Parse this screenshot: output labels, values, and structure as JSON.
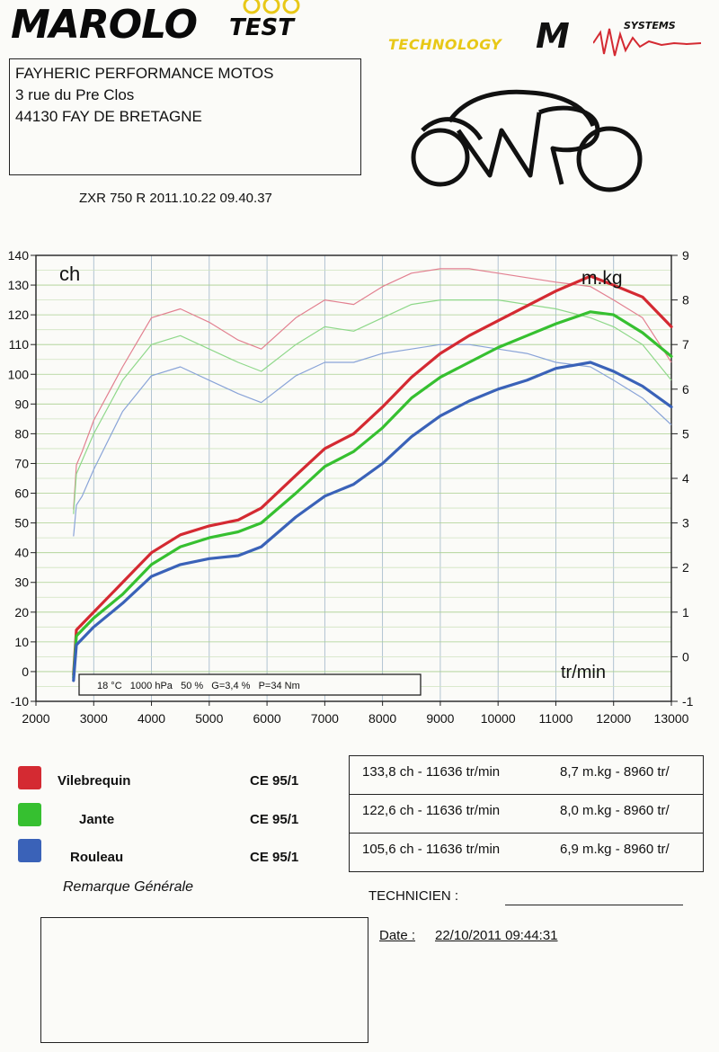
{
  "header": {
    "brand_main": "MAROLO",
    "brand_test": "TEST",
    "tech_text": "TECHNOLOGY",
    "systems_main": "M",
    "systems_sub": "SYSTEMS"
  },
  "address": {
    "line1": "FAYHERIC PERFORMANCE MOTOS",
    "line2": "3 rue du Pre Clos",
    "line3": "44130 FAY DE BRETAGNE"
  },
  "model_line": "ZXR 750 R   2011.10.22 09.40.37",
  "chart_data": {
    "type": "line",
    "x_label": "tr/min",
    "y_label_left": "ch",
    "y_label_right": "m.kg",
    "xlim": [
      2000,
      13000
    ],
    "ylim_left": [
      -10,
      140
    ],
    "ylim_right": [
      -1,
      9
    ],
    "x_ticks": [
      2000,
      3000,
      4000,
      5000,
      6000,
      7000,
      8000,
      9000,
      10000,
      11000,
      12000,
      13000
    ],
    "y_ticks_left": [
      -10,
      0,
      10,
      20,
      30,
      40,
      50,
      60,
      70,
      80,
      90,
      100,
      110,
      120,
      130,
      140
    ],
    "y_ticks_right": [
      -1,
      0,
      1,
      2,
      3,
      4,
      5,
      6,
      7,
      8,
      9
    ],
    "grid": true,
    "conditions": "18 °C   1000 hPa   50 %   G=3,4 %   P=34 Nm",
    "colors": {
      "power": [
        "#d42a32",
        "#36c030",
        "#3a62b8"
      ],
      "torque": [
        "#e28090",
        "#8fd88a",
        "#8aa4d8"
      ]
    },
    "rpm": [
      2650,
      2700,
      2800,
      3000,
      3500,
      4000,
      4500,
      5000,
      5500,
      5900,
      6500,
      7000,
      7500,
      8000,
      8500,
      9000,
      9500,
      10000,
      10500,
      11000,
      11600,
      12000,
      12500,
      13000
    ],
    "power_series": [
      {
        "name": "Vilebrequin",
        "values": [
          -1,
          14,
          16,
          20,
          30,
          40,
          46,
          49,
          51,
          55,
          66,
          75,
          80,
          89,
          99,
          107,
          113,
          118,
          123,
          128,
          133,
          130,
          126,
          116
        ]
      },
      {
        "name": "Jante",
        "values": [
          -2,
          12,
          14,
          18,
          26,
          36,
          42,
          45,
          47,
          50,
          60,
          69,
          74,
          82,
          92,
          99,
          104,
          109,
          113,
          117,
          121,
          120,
          114,
          106
        ]
      },
      {
        "name": "Rouleau",
        "values": [
          -3,
          9,
          11,
          15,
          23,
          32,
          36,
          38,
          39,
          42,
          52,
          59,
          63,
          70,
          79,
          86,
          91,
          95,
          98,
          102,
          104,
          101,
          96,
          89
        ]
      }
    ],
    "torque_series": [
      {
        "name": "Vilebrequin",
        "values": [
          3.3,
          4.3,
          4.6,
          5.3,
          6.5,
          7.6,
          7.8,
          7.5,
          7.1,
          6.9,
          7.6,
          8.0,
          7.9,
          8.3,
          8.6,
          8.7,
          8.7,
          8.6,
          8.5,
          8.4,
          8.3,
          8.0,
          7.6,
          6.6
        ]
      },
      {
        "name": "Jante",
        "values": [
          3.2,
          4.1,
          4.4,
          5.0,
          6.2,
          7.0,
          7.2,
          6.9,
          6.6,
          6.4,
          7.0,
          7.4,
          7.3,
          7.6,
          7.9,
          8.0,
          8.0,
          8.0,
          7.9,
          7.8,
          7.6,
          7.4,
          7.0,
          6.2
        ]
      },
      {
        "name": "Rouleau",
        "values": [
          2.7,
          3.4,
          3.6,
          4.2,
          5.5,
          6.3,
          6.5,
          6.2,
          5.9,
          5.7,
          6.3,
          6.6,
          6.6,
          6.8,
          6.9,
          7.0,
          7.0,
          6.9,
          6.8,
          6.6,
          6.5,
          6.2,
          5.8,
          5.2
        ]
      }
    ]
  },
  "legend": [
    {
      "name": "Vilebrequin",
      "norm": "CE 95/1",
      "color": "#d42a32"
    },
    {
      "name": "Jante",
      "norm": "CE 95/1",
      "color": "#36c030"
    },
    {
      "name": "Rouleau",
      "norm": "CE 95/1",
      "color": "#3a62b8"
    }
  ],
  "results": [
    {
      "power": "133,8 ch - 11636 tr/min",
      "torque": "8,7 m.kg - 8960 tr/"
    },
    {
      "power": "122,6 ch - 11636 tr/min",
      "torque": "8,0 m.kg - 8960 tr/"
    },
    {
      "power": "105,6 ch - 11636 tr/min",
      "torque": "6,9 m.kg - 8960 tr/"
    }
  ],
  "footer": {
    "remark": "Remarque Générale",
    "technician": "TECHNICIEN :",
    "date_label": "Date :",
    "date_value": "22/10/2011 09:44:31"
  }
}
